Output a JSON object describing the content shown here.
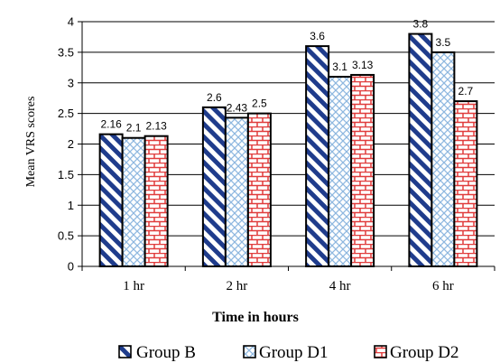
{
  "chart_data": {
    "type": "bar",
    "categories": [
      "1 hr",
      "2 hr",
      "4 hr",
      "6 hr"
    ],
    "series": [
      {
        "name": "Group B",
        "values": [
          2.16,
          2.6,
          3.6,
          3.8
        ],
        "labels": [
          "2.16",
          "2.6",
          "3.6",
          "3.8"
        ]
      },
      {
        "name": "Group D1",
        "values": [
          2.1,
          2.43,
          3.1,
          3.5
        ],
        "labels": [
          "2.1",
          "2.43",
          "3.1",
          "3.5"
        ]
      },
      {
        "name": "Group D2",
        "values": [
          2.13,
          2.5,
          3.13,
          2.7
        ],
        "labels": [
          "2.13",
          "2.5",
          "3.13",
          "2.7"
        ]
      }
    ],
    "xlabel": "Time in hours",
    "ylabel": "Mean VRS scores",
    "ylim": [
      0,
      4
    ],
    "yticks": [
      "0",
      "0.5",
      "1",
      "1.5",
      "2",
      "2.5",
      "3",
      "3.5",
      "4"
    ],
    "grid": true,
    "legend_position": "bottom",
    "colors": {
      "group_b_stripe": "#1f3c8c",
      "group_d1_hatch": "#8fb8e0",
      "group_d2_brick": "#e03c3c",
      "grid": "#000000"
    }
  }
}
